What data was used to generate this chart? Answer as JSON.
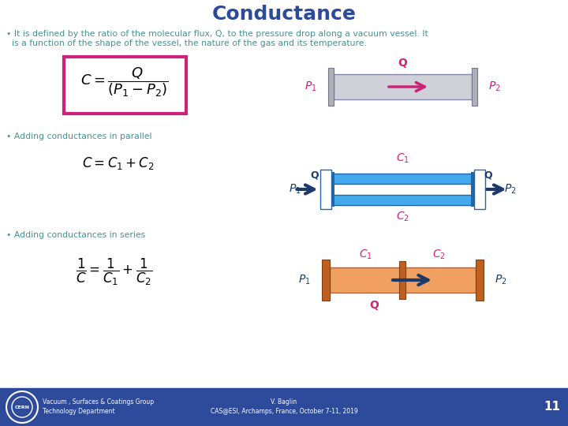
{
  "title": "Conductance",
  "title_color": "#2E4B9B",
  "title_fontsize": 18,
  "bg_color": "#FFFFFF",
  "footer_bg_color": "#2E4B9B",
  "bullet1_text_line1": "• It is defined by the ratio of the molecular flux, Q, to the pressure drop along a vacuum vessel. It",
  "bullet1_text_line2": "  is a function of the shape of the vessel, the nature of the gas and its temperature.",
  "bullet2_text": "• Adding conductances in parallel",
  "bullet3_text": "• Adding conductances in series",
  "body_text_color": "#4A4A4A",
  "formula_box_color": "#CC2277",
  "arrow_color_red": "#CC2277",
  "arrow_color_blue": "#1E3A6A",
  "pipe_fill_gray": "#D0D0D8",
  "pipe_border_gray": "#888888",
  "pipe_fill_blue": "#44AAEE",
  "pipe_border_blue": "#2266AA",
  "pipe_fill_orange": "#F0A060",
  "pipe_flange_orange": "#C06020",
  "footer_text1a": "Vacuum , Surfaces & Coatings Group",
  "footer_text1b": "Technology Department",
  "footer_text2a": "V. Baglin",
  "footer_text2b": "CAS@ESI, Archamps, France, October 7-11, 2019",
  "footer_page": "11",
  "label_color_red": "#CC2277",
  "label_color_blue": "#1E3A6A",
  "teal_color": "#4A9090"
}
